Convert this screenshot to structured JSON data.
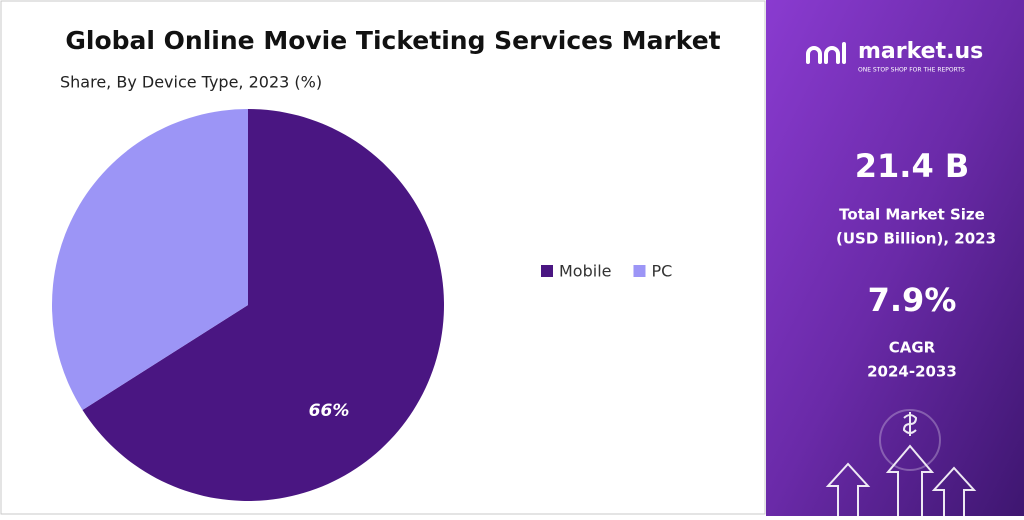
{
  "chart_data": {
    "type": "pie",
    "title": "Global Online Movie Ticketing Services Market",
    "subtitle": "Share, By Device Type, 2023 (%)",
    "categories": [
      "Mobile",
      "PC"
    ],
    "values": [
      66,
      34
    ],
    "value_labels": [
      "66%",
      null
    ],
    "colors": [
      "#4a1682",
      "#9c95f6"
    ],
    "legend": "right"
  },
  "side_panel": {
    "brand": "market.us",
    "tagline": "ONE STOP SHOP FOR THE REPORTS",
    "market_size": "21.4 B",
    "market_size_label_1": "Total Market Size",
    "market_size_label_2": "(USD Billion), 2023",
    "cagr": "7.9%",
    "cagr_label": "CAGR",
    "cagr_period": "2024-2033"
  }
}
